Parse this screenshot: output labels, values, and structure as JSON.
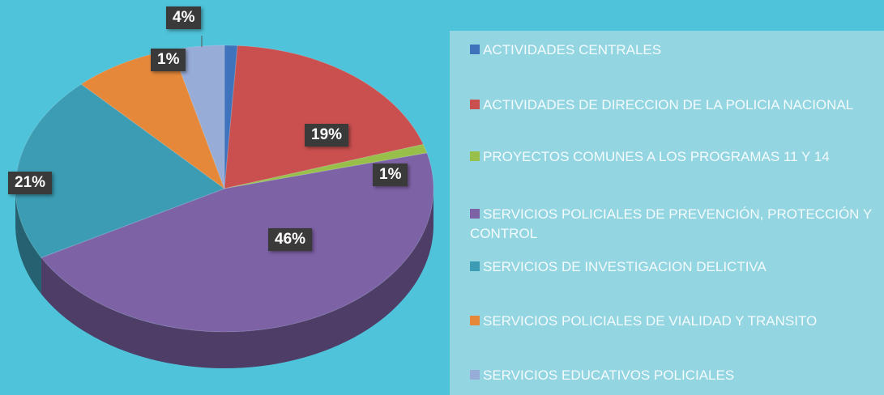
{
  "chart_data": {
    "type": "pie",
    "categories": [
      "ACTIVIDADES CENTRALES",
      "ACTIVIDADES DE DIRECCION DE LA POLICIA NACIONAL",
      "PROYECTOS COMUNES A LOS PROGRAMAS 11 Y 14",
      "SERVICIOS POLICIALES DE PREVENCIÓN, PROTECCIÓN Y CONTROL",
      "SERVICIOS DE INVESTIGACION DELICTIVA",
      "SERVICIOS POLICIALES DE VIALIDAD Y TRANSITO",
      "SERVICIOS EDUCATIVOS POLICIALES"
    ],
    "values": [
      1,
      19,
      1,
      46,
      21,
      8,
      4
    ],
    "value_labels": [
      "1%",
      "19%",
      "1%",
      "46%",
      "21%",
      null,
      "4%"
    ],
    "colors": [
      "#3f74bd",
      "#c9504f",
      "#98bf4a",
      "#7e62a6",
      "#3b9cb4",
      "#e6883a",
      "#98acd8"
    ],
    "legend": "right"
  }
}
